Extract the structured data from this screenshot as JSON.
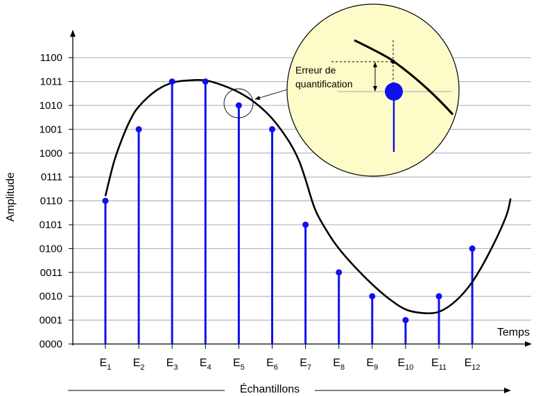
{
  "axes": {
    "y_title": "Amplitude",
    "x_title": "Temps",
    "bottom_title": "Échantillons",
    "y_ticks": [
      "0000",
      "0001",
      "0010",
      "0011",
      "0100",
      "0101",
      "0110",
      "0111",
      "1000",
      "1001",
      "1010",
      "1011",
      "1100"
    ]
  },
  "samples": [
    {
      "letter": "E",
      "index": "1",
      "code": "0110"
    },
    {
      "letter": "E",
      "index": "2",
      "code": "1001"
    },
    {
      "letter": "E",
      "index": "3",
      "code": "1011"
    },
    {
      "letter": "E",
      "index": "4",
      "code": "1011"
    },
    {
      "letter": "E",
      "index": "5",
      "code": "1010"
    },
    {
      "letter": "E",
      "index": "6",
      "code": "1001"
    },
    {
      "letter": "E",
      "index": "7",
      "code": "0101"
    },
    {
      "letter": "E",
      "index": "8",
      "code": "0011"
    },
    {
      "letter": "E",
      "index": "9",
      "code": "0010"
    },
    {
      "letter": "E",
      "index": "10",
      "code": "0001"
    },
    {
      "letter": "E",
      "index": "11",
      "code": "0010"
    },
    {
      "letter": "E",
      "index": "12",
      "code": "0100"
    }
  ],
  "signal_values": [
    [
      0.0,
      6.2
    ],
    [
      0.25,
      7.6
    ],
    [
      0.5,
      8.6
    ],
    [
      0.75,
      9.4
    ],
    [
      1.0,
      9.95
    ],
    [
      1.5,
      10.6
    ],
    [
      2.0,
      10.95
    ],
    [
      2.5,
      11.05
    ],
    [
      3.0,
      11.05
    ],
    [
      3.5,
      10.85
    ],
    [
      4.0,
      10.55
    ],
    [
      4.5,
      10.1
    ],
    [
      5.0,
      9.45
    ],
    [
      5.5,
      8.5
    ],
    [
      5.8,
      7.7
    ],
    [
      6.0,
      6.9
    ],
    [
      6.3,
      5.6
    ],
    [
      6.7,
      4.6
    ],
    [
      7.0,
      4.0
    ],
    [
      7.5,
      3.2
    ],
    [
      8.0,
      2.5
    ],
    [
      8.5,
      1.9
    ],
    [
      9.0,
      1.45
    ],
    [
      9.5,
      1.3
    ],
    [
      10.0,
      1.35
    ],
    [
      10.5,
      1.8
    ],
    [
      11.0,
      2.6
    ],
    [
      11.5,
      3.8
    ],
    [
      12.0,
      5.3
    ],
    [
      12.15,
      6.1
    ]
  ],
  "inset": {
    "label_line1": "Erreur de",
    "label_line2": "quantification"
  },
  "colors": {
    "sample": "#1010ee",
    "curve": "#000000",
    "grid": "#a8a8a8",
    "inset_fill": "#fdfcc8"
  }
}
